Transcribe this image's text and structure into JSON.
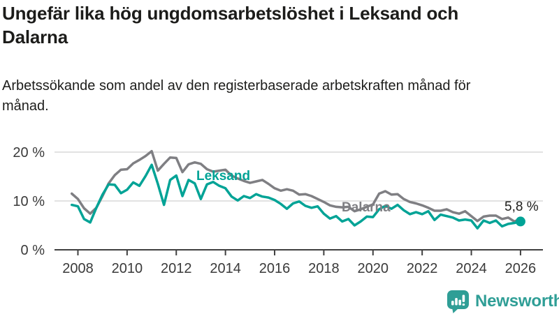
{
  "header": {
    "title": "Ungefär lika hög ungdomsarbetslöshet i Leksand och Dalarna",
    "subtitle": "Arbetssökande som andel av den registerbaserade arbetskraften månad för månad."
  },
  "chart_data": {
    "type": "line",
    "title": "Ungefär lika hög ungdomsarbetslöshet i Leksand och Dalarna",
    "subtitle": "Arbetssökande som andel av den registerbaserade arbetskraften månad för månad.",
    "xlabel": "",
    "ylabel": "",
    "ylim": [
      0,
      22
    ],
    "xlim": [
      2007.5,
      2027
    ],
    "grid": "horizontal",
    "legend_position": "inline-labels",
    "y_ticks": [
      {
        "value": 0,
        "label": "0 %"
      },
      {
        "value": 10,
        "label": "10 %"
      },
      {
        "value": 20,
        "label": "20 %"
      }
    ],
    "x_ticks": [
      2008,
      2010,
      2012,
      2014,
      2016,
      2018,
      2020,
      2022,
      2024,
      2026
    ],
    "axis_color": "#404040",
    "grid_color": "#d9d9d9",
    "x": [
      2007.75,
      2008,
      2008.25,
      2008.5,
      2008.75,
      2009,
      2009.25,
      2009.5,
      2009.75,
      2010,
      2010.25,
      2010.5,
      2010.75,
      2011,
      2011.25,
      2011.5,
      2011.75,
      2012,
      2012.25,
      2012.5,
      2012.75,
      2013,
      2013.25,
      2013.5,
      2013.75,
      2014,
      2014.25,
      2014.5,
      2014.75,
      2015,
      2015.25,
      2015.5,
      2015.75,
      2016,
      2016.25,
      2016.5,
      2016.75,
      2017,
      2017.25,
      2017.5,
      2017.75,
      2018,
      2018.25,
      2018.5,
      2018.75,
      2019,
      2019.25,
      2019.5,
      2019.75,
      2020,
      2020.25,
      2020.5,
      2020.75,
      2021,
      2021.25,
      2021.5,
      2021.75,
      2022,
      2022.25,
      2022.5,
      2022.75,
      2023,
      2023.25,
      2023.5,
      2023.75,
      2024,
      2024.25,
      2024.5,
      2024.75,
      2025,
      2025.25,
      2025.5,
      2025.75,
      2026
    ],
    "series": [
      {
        "name": "Leksand",
        "color": "#00a396",
        "values": [
          9.2,
          8.9,
          6.3,
          5.6,
          8.6,
          11.3,
          13.4,
          13.3,
          11.6,
          12.3,
          13.8,
          13.1,
          15.1,
          17.4,
          13.5,
          9.2,
          14.3,
          15.2,
          11.0,
          14.3,
          13.6,
          10.4,
          13.4,
          13.9,
          13.1,
          12.6,
          10.9,
          10.1,
          11.0,
          10.6,
          11.4,
          10.9,
          10.7,
          10.2,
          9.4,
          8.4,
          9.5,
          9.9,
          9.0,
          8.6,
          8.9,
          7.4,
          6.4,
          6.9,
          5.8,
          6.3,
          5.0,
          5.8,
          6.8,
          6.7,
          8.3,
          9.0,
          8.4,
          9.2,
          8.1,
          7.3,
          7.7,
          7.3,
          7.9,
          6.1,
          7.2,
          6.9,
          6.6,
          6.0,
          6.2,
          6.0,
          4.4,
          6.0,
          5.5,
          6.0,
          4.8,
          5.3,
          5.5,
          5.8
        ]
      },
      {
        "name": "Dalarna",
        "color": "#7f7f83",
        "values": [
          11.5,
          10.4,
          8.5,
          7.4,
          8.6,
          11.0,
          13.6,
          15.3,
          16.4,
          16.5,
          17.7,
          18.4,
          19.2,
          20.2,
          16.2,
          17.6,
          18.9,
          18.8,
          15.9,
          17.5,
          17.9,
          17.6,
          16.5,
          16.0,
          16.2,
          16.4,
          15.2,
          14.6,
          14.1,
          13.7,
          14.0,
          14.3,
          13.5,
          12.6,
          12.1,
          12.4,
          12.1,
          11.3,
          11.4,
          11.0,
          10.4,
          9.8,
          9.1,
          8.8,
          8.7,
          8.8,
          7.9,
          8.3,
          8.8,
          9.3,
          11.5,
          12.0,
          11.3,
          11.4,
          10.4,
          9.8,
          9.5,
          9.1,
          8.6,
          8.0,
          8.0,
          8.3,
          7.7,
          7.4,
          7.9,
          6.9,
          5.9,
          6.8,
          7.0,
          7.0,
          6.3,
          6.6,
          5.8,
          6.3
        ]
      }
    ],
    "end_point": {
      "series": "Leksand",
      "x": 2026,
      "value": 5.8
    },
    "end_label": "5,8 %"
  },
  "footer": {
    "brand": "Newsworthy",
    "brand_color": "#2f9e96",
    "logo_icon": "bar-chart-speech-bubble-icon"
  }
}
